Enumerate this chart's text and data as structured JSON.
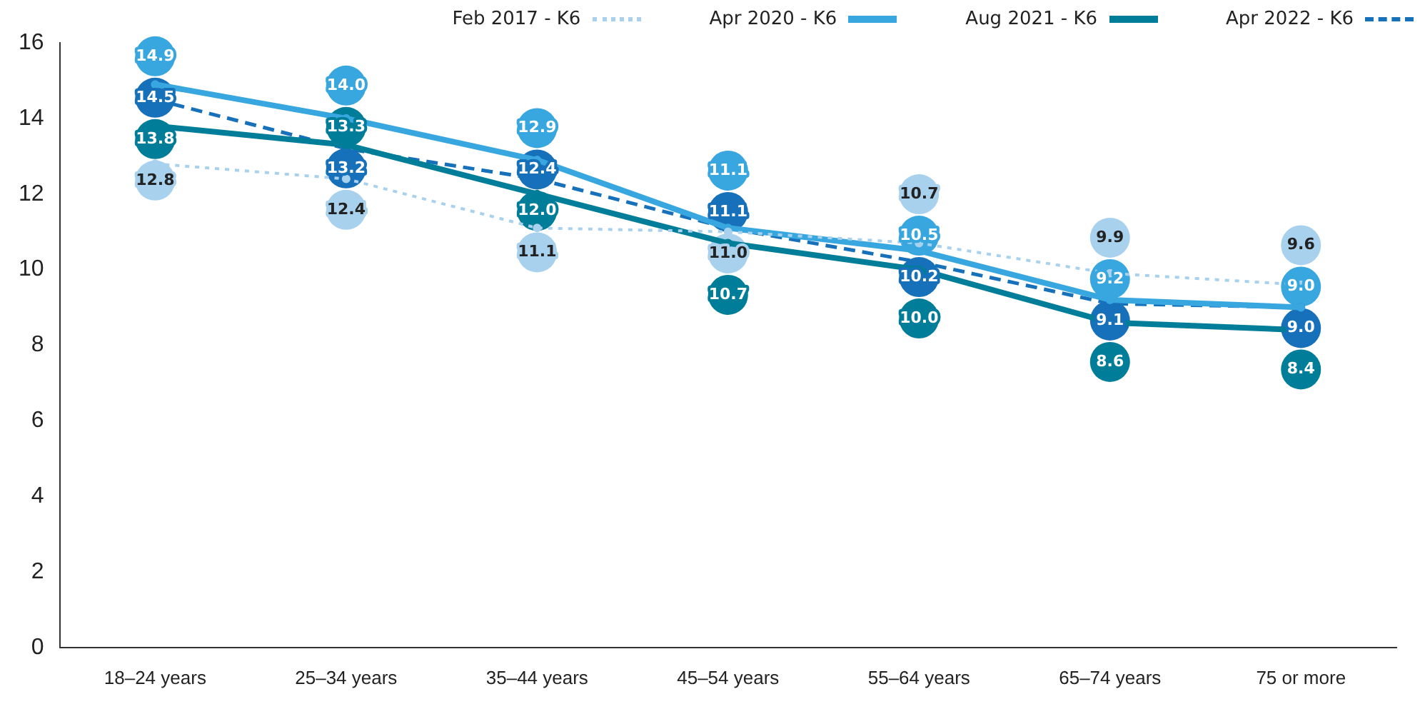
{
  "chart_data": {
    "type": "line",
    "categories": [
      "18–24 years",
      "25–34 years",
      "35–44 years",
      "45–54 years",
      "55–64 years",
      "65–74 years",
      "75 or more"
    ],
    "series": [
      {
        "name": "Feb 2017 - K6",
        "color": "#a8d1ee",
        "line_style": "dotted",
        "values": [
          12.8,
          12.4,
          11.1,
          11.0,
          10.7,
          9.9,
          9.6
        ],
        "value_labels": [
          "12.8",
          "12.4",
          "11.1",
          "11.0",
          "10.7",
          "9.9",
          "9.6"
        ]
      },
      {
        "name": "Apr 2020 - K6",
        "color": "#38a6df",
        "line_style": "solid",
        "values": [
          14.9,
          14.0,
          12.9,
          11.1,
          10.5,
          9.2,
          9.0
        ],
        "value_labels": [
          "14.9",
          "14.0",
          "12.9",
          "11.1",
          "10.5",
          "9.2",
          "9.0"
        ]
      },
      {
        "name": "Aug 2021 - K6",
        "color": "#007d99",
        "line_style": "solid",
        "values": [
          13.8,
          13.3,
          12.0,
          10.7,
          10.0,
          8.6,
          8.4
        ],
        "value_labels": [
          "13.8",
          "13.3",
          "12.0",
          "10.7",
          "10.0",
          "8.6",
          "8.4"
        ]
      },
      {
        "name": "Apr 2022 - K6",
        "color": "#1670ba",
        "line_style": "dashed",
        "values": [
          14.5,
          13.2,
          12.4,
          11.1,
          10.2,
          9.1,
          9.0
        ],
        "value_labels": [
          "14.5",
          "13.2",
          "12.4",
          "11.1",
          "10.2",
          "9.1",
          "9.0"
        ]
      }
    ],
    "ylim": [
      0,
      16
    ],
    "yticks": [
      0,
      2,
      4,
      6,
      8,
      10,
      12,
      14,
      16
    ],
    "grid": false,
    "data_labels": true,
    "legend": "top right",
    "marker": "circle"
  }
}
